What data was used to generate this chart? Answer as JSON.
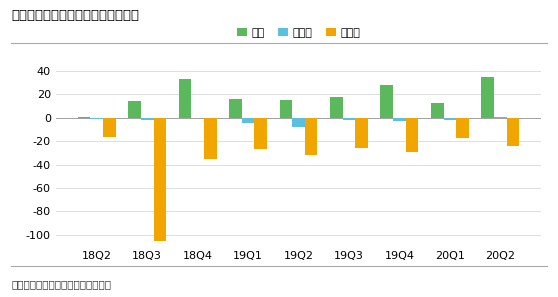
{
  "title": "图：蔚来的季度营收和利润（亿元）",
  "footnote": "数据来源：公司财报，老虎证券整理",
  "categories": [
    "18Q2",
    "18Q3",
    "18Q4",
    "19Q1",
    "19Q2",
    "19Q3",
    "19Q4",
    "20Q1",
    "20Q2"
  ],
  "revenue": [
    1.0,
    14.0,
    33.0,
    16.0,
    15.0,
    18.0,
    28.0,
    13.0,
    35.0
  ],
  "gross_profit": [
    -1.0,
    -1.5,
    -0.5,
    -4.0,
    -8.0,
    -1.5,
    -3.0,
    -1.5,
    0.5
  ],
  "net_profit": [
    -16.0,
    -105.0,
    -35.0,
    -27.0,
    -32.0,
    -26.0,
    -29.0,
    -17.0,
    -24.0
  ],
  "colors": {
    "revenue": "#5cb85c",
    "gross_profit": "#5bc0de",
    "net_profit": "#f0a500"
  },
  "ylim": [
    -110,
    50
  ],
  "yticks": [
    -100,
    -80,
    -60,
    -40,
    -20,
    0,
    20,
    40
  ],
  "legend_labels": [
    "营收",
    "毛利润",
    "净利润"
  ],
  "bar_width": 0.25,
  "background_color": "#ffffff",
  "title_fontsize": 9.5,
  "tick_fontsize": 8,
  "footnote_fontsize": 7.5
}
